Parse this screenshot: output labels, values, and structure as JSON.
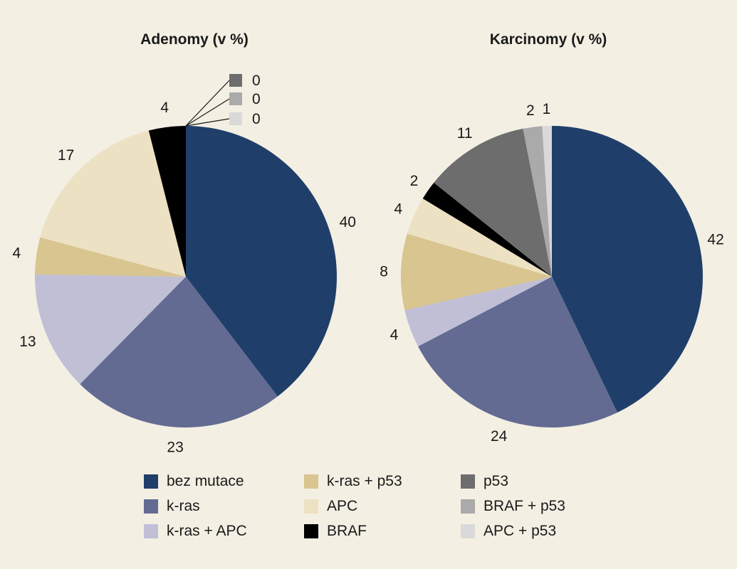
{
  "chart_data": [
    {
      "type": "pie",
      "title": "Adenomy (v %)",
      "slices": [
        {
          "label": "bez mutace",
          "value": 40,
          "color": "#1f3f6a"
        },
        {
          "label": "k-ras",
          "value": 23,
          "color": "#636b93"
        },
        {
          "label": "k-ras + APC",
          "value": 13,
          "color": "#c0bfd6"
        },
        {
          "label": "k-ras + p53",
          "value": 4,
          "color": "#d8c58f"
        },
        {
          "label": "APC",
          "value": 17,
          "color": "#ece1c3"
        },
        {
          "label": "BRAF",
          "value": 4,
          "color": "#000000"
        },
        {
          "label": "p53",
          "value": 0,
          "color": "#6d6d6d"
        },
        {
          "label": "BRAF + p53",
          "value": 0,
          "color": "#aaaaaa"
        },
        {
          "label": "APC + p53",
          "value": 0,
          "color": "#d9d9d9"
        }
      ],
      "value_labels": [
        "40",
        "23",
        "13",
        "4",
        "17",
        "4",
        "0",
        "0",
        "0"
      ]
    },
    {
      "type": "pie",
      "title": "Karcinomy (v %)",
      "slices": [
        {
          "label": "bez mutace",
          "value": 42,
          "color": "#1f3f6a"
        },
        {
          "label": "k-ras",
          "value": 24,
          "color": "#636b93"
        },
        {
          "label": "k-ras + APC",
          "value": 4,
          "color": "#c0bfd6"
        },
        {
          "label": "k-ras + p53",
          "value": 8,
          "color": "#d8c58f"
        },
        {
          "label": "APC",
          "value": 4,
          "color": "#ece1c3"
        },
        {
          "label": "BRAF",
          "value": 2,
          "color": "#000000"
        },
        {
          "label": "p53",
          "value": 11,
          "color": "#6d6d6d"
        },
        {
          "label": "BRAF + p53",
          "value": 2,
          "color": "#aaaaaa"
        },
        {
          "label": "APC + p53",
          "value": 1,
          "color": "#d9d9d9"
        }
      ],
      "value_labels": [
        "42",
        "24",
        "4",
        "8",
        "4",
        "2",
        "11",
        "2",
        "1"
      ]
    }
  ],
  "legend": [
    {
      "label": "bez mutace",
      "color": "#1f3f6a"
    },
    {
      "label": "k-ras",
      "color": "#636b93"
    },
    {
      "label": "k-ras + APC",
      "color": "#c0bfd6"
    },
    {
      "label": "k-ras + p53",
      "color": "#d8c58f"
    },
    {
      "label": "APC",
      "color": "#ece1c3"
    },
    {
      "label": "BRAF",
      "color": "#000000"
    },
    {
      "label": "p53",
      "color": "#6d6d6d"
    },
    {
      "label": "BRAF + p53",
      "color": "#aaaaaa"
    },
    {
      "label": "APC + p53",
      "color": "#d9d9d9"
    }
  ]
}
